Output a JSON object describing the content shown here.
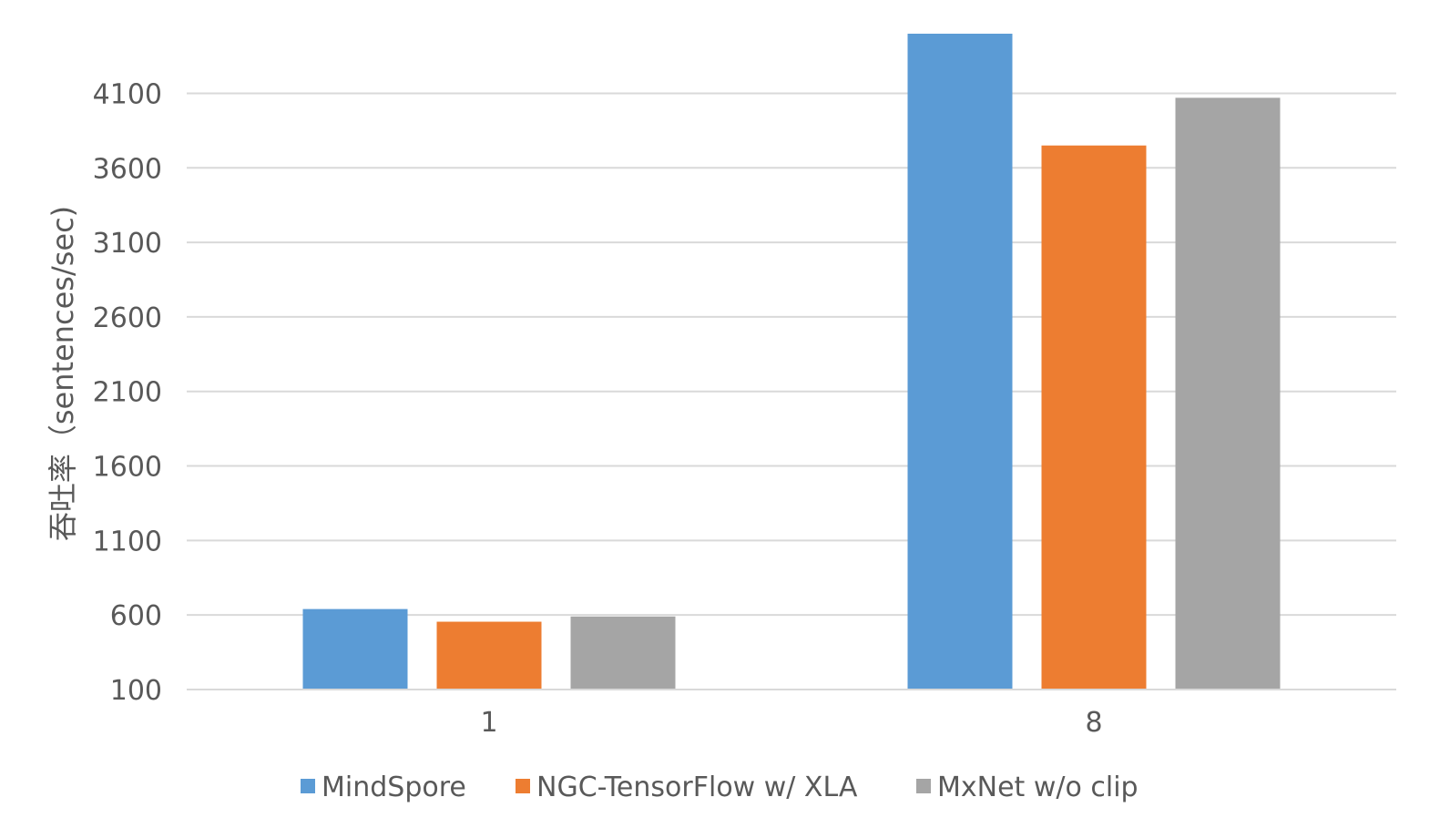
{
  "chart_data": {
    "type": "bar",
    "categories": [
      "1",
      "8"
    ],
    "series": [
      {
        "name": "MindSpore",
        "color": "#5B9BD5",
        "values": [
          640,
          4500
        ]
      },
      {
        "name": "NGC-TensorFlow w/ XLA",
        "color": "#ED7D31",
        "values": [
          555,
          3750
        ]
      },
      {
        "name": "MxNet w/o clip",
        "color": "#A5A5A5",
        "values": [
          590,
          4070
        ]
      }
    ],
    "ylabel": "吞吐率（sentences/sec)",
    "ylim": [
      100,
      4500
    ],
    "yticks": [
      100,
      600,
      1100,
      1600,
      2100,
      2600,
      3100,
      3600,
      4100
    ],
    "grid": true,
    "legend": "bottom"
  }
}
